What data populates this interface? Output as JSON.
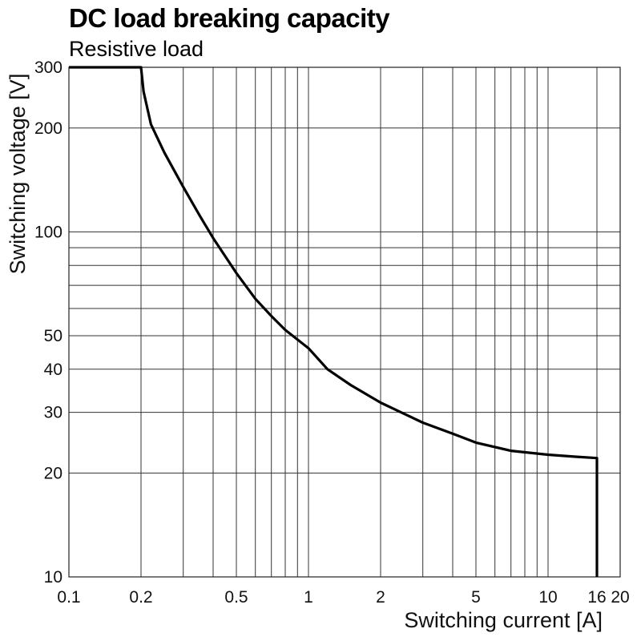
{
  "chart_data": {
    "type": "line",
    "title": "DC load breaking capacity",
    "subtitle": "Resistive load",
    "xlabel": "Switching current [A]",
    "ylabel": "Switching voltage [V]",
    "x_scale": "log",
    "y_scale": "log",
    "xlim": [
      0.1,
      20
    ],
    "ylim": [
      10,
      300
    ],
    "x_ticks": [
      {
        "value": 0.1,
        "label": "0.1"
      },
      {
        "value": 0.2,
        "label": "0.2"
      },
      {
        "value": 0.5,
        "label": "0.5"
      },
      {
        "value": 1,
        "label": "1"
      },
      {
        "value": 2,
        "label": "2"
      },
      {
        "value": 5,
        "label": "5"
      },
      {
        "value": 10,
        "label": "10"
      },
      {
        "value": 16,
        "label": "16"
      },
      {
        "value": 20,
        "label": "20"
      }
    ],
    "y_ticks": [
      {
        "value": 10,
        "label": "10"
      },
      {
        "value": 20,
        "label": "20"
      },
      {
        "value": 30,
        "label": "30"
      },
      {
        "value": 40,
        "label": "40"
      },
      {
        "value": 50,
        "label": "50"
      },
      {
        "value": 100,
        "label": "100"
      },
      {
        "value": 200,
        "label": "200"
      },
      {
        "value": 300,
        "label": "300"
      }
    ],
    "x_grid": [
      0.2,
      0.3,
      0.4,
      0.5,
      0.6,
      0.7,
      0.8,
      0.9,
      1,
      2,
      3,
      4,
      5,
      6,
      7,
      8,
      9,
      10,
      16
    ],
    "y_grid": [
      20,
      30,
      40,
      50,
      60,
      70,
      80,
      90,
      100,
      200
    ],
    "grid": true,
    "series": [
      {
        "values": [
          [
            0.1,
            300
          ],
          [
            0.2,
            300
          ],
          [
            0.205,
            255
          ],
          [
            0.22,
            205
          ],
          [
            0.25,
            170
          ],
          [
            0.3,
            135
          ],
          [
            0.35,
            112
          ],
          [
            0.4,
            96
          ],
          [
            0.5,
            76
          ],
          [
            0.6,
            64
          ],
          [
            0.7,
            57
          ],
          [
            0.8,
            52
          ],
          [
            1.0,
            46
          ],
          [
            1.2,
            40
          ],
          [
            1.5,
            36
          ],
          [
            2.0,
            32
          ],
          [
            3.0,
            28
          ],
          [
            4.0,
            26
          ],
          [
            5.0,
            24.5
          ],
          [
            7.0,
            23.2
          ],
          [
            10.0,
            22.6
          ],
          [
            13.0,
            22.3
          ],
          [
            16.0,
            22.1
          ],
          [
            16.0,
            10
          ]
        ]
      }
    ]
  }
}
